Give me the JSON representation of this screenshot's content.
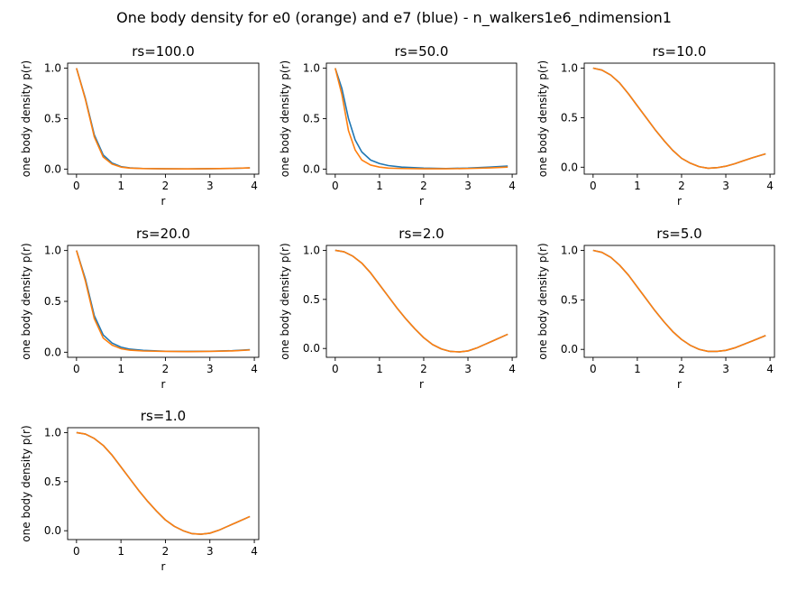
{
  "suptitle": "One body density for e0 (orange) and e7 (blue) - n_walkers1e6_ndimension1",
  "colors": {
    "e7": "#1f77b4",
    "e0": "#ff7f0e"
  },
  "chart_data": [
    {
      "type": "line",
      "title": "rs=100.0",
      "xlabel": "r",
      "ylabel": "one body density p(r)",
      "xlim": [
        -0.2,
        4.1
      ],
      "ylim": [
        -0.05,
        1.05
      ],
      "xticks": [
        0,
        1,
        2,
        3,
        4
      ],
      "yticks": [
        0.0,
        0.5,
        1.0
      ],
      "x": [
        0,
        0.2,
        0.4,
        0.6,
        0.8,
        1.0,
        1.2,
        1.5,
        2.0,
        2.5,
        3.0,
        3.5,
        3.9
      ],
      "series": [
        {
          "key": "e7",
          "values": [
            1.0,
            0.7,
            0.34,
            0.14,
            0.06,
            0.025,
            0.012,
            0.006,
            0.003,
            0.002,
            0.004,
            0.007,
            0.012
          ]
        },
        {
          "key": "e0",
          "values": [
            1.0,
            0.69,
            0.32,
            0.12,
            0.05,
            0.02,
            0.01,
            0.005,
            0.003,
            0.002,
            0.004,
            0.007,
            0.012
          ]
        }
      ]
    },
    {
      "type": "line",
      "title": "rs=50.0",
      "xlabel": "r",
      "ylabel": "one body density p(r)",
      "xlim": [
        -0.2,
        4.1
      ],
      "ylim": [
        -0.05,
        1.05
      ],
      "xticks": [
        0,
        1,
        2,
        3,
        4
      ],
      "yticks": [
        0.0,
        0.5,
        1.0
      ],
      "x": [
        0,
        0.15,
        0.3,
        0.45,
        0.6,
        0.8,
        1.0,
        1.2,
        1.5,
        2.0,
        2.5,
        3.0,
        3.5,
        3.9
      ],
      "series": [
        {
          "key": "e7",
          "values": [
            1.0,
            0.8,
            0.5,
            0.29,
            0.17,
            0.09,
            0.055,
            0.035,
            0.02,
            0.01,
            0.006,
            0.01,
            0.02,
            0.03
          ]
        },
        {
          "key": "e0",
          "values": [
            1.0,
            0.74,
            0.38,
            0.19,
            0.09,
            0.04,
            0.02,
            0.01,
            0.006,
            0.003,
            0.003,
            0.006,
            0.012,
            0.02
          ]
        }
      ]
    },
    {
      "type": "line",
      "title": "rs=10.0",
      "xlabel": "r",
      "ylabel": "one body density p(r)",
      "xlim": [
        -0.2,
        4.1
      ],
      "ylim": [
        -0.07,
        1.05
      ],
      "xticks": [
        0,
        1,
        2,
        3,
        4
      ],
      "yticks": [
        0.0,
        0.5,
        1.0
      ],
      "x": [
        0,
        0.2,
        0.4,
        0.6,
        0.8,
        1.0,
        1.2,
        1.4,
        1.6,
        1.8,
        2.0,
        2.2,
        2.4,
        2.6,
        2.8,
        3.0,
        3.2,
        3.4,
        3.6,
        3.9
      ],
      "series": [
        {
          "key": "e7",
          "values": [
            1.0,
            0.98,
            0.93,
            0.85,
            0.74,
            0.62,
            0.5,
            0.38,
            0.27,
            0.17,
            0.09,
            0.04,
            0.005,
            -0.01,
            -0.005,
            0.01,
            0.035,
            0.065,
            0.095,
            0.135
          ]
        },
        {
          "key": "e0",
          "values": [
            1.0,
            0.98,
            0.93,
            0.85,
            0.74,
            0.62,
            0.5,
            0.38,
            0.27,
            0.17,
            0.09,
            0.04,
            0.005,
            -0.01,
            -0.005,
            0.01,
            0.035,
            0.065,
            0.095,
            0.135
          ]
        }
      ]
    },
    {
      "type": "line",
      "title": "rs=20.0",
      "xlabel": "r",
      "ylabel": "one body density p(r)",
      "xlim": [
        -0.2,
        4.1
      ],
      "ylim": [
        -0.05,
        1.05
      ],
      "xticks": [
        0,
        1,
        2,
        3,
        4
      ],
      "yticks": [
        0.0,
        0.5,
        1.0
      ],
      "x": [
        0,
        0.2,
        0.4,
        0.6,
        0.8,
        1.0,
        1.2,
        1.5,
        2.0,
        2.5,
        3.0,
        3.5,
        3.9
      ],
      "series": [
        {
          "key": "e7",
          "values": [
            1.0,
            0.72,
            0.36,
            0.17,
            0.09,
            0.05,
            0.03,
            0.018,
            0.01,
            0.008,
            0.01,
            0.015,
            0.025
          ]
        },
        {
          "key": "e0",
          "values": [
            1.0,
            0.7,
            0.33,
            0.14,
            0.07,
            0.035,
            0.02,
            0.012,
            0.008,
            0.006,
            0.008,
            0.013,
            0.022
          ]
        }
      ]
    },
    {
      "type": "line",
      "title": "rs=2.0",
      "xlabel": "r",
      "ylabel": "one body density p(r)",
      "xlim": [
        -0.2,
        4.1
      ],
      "ylim": [
        -0.09,
        1.05
      ],
      "xticks": [
        0,
        1,
        2,
        3,
        4
      ],
      "yticks": [
        0.0,
        0.5,
        1.0
      ],
      "x": [
        0,
        0.2,
        0.4,
        0.6,
        0.8,
        1.0,
        1.2,
        1.4,
        1.6,
        1.8,
        2.0,
        2.2,
        2.4,
        2.6,
        2.8,
        3.0,
        3.2,
        3.4,
        3.6,
        3.9
      ],
      "series": [
        {
          "key": "e7",
          "values": [
            1.0,
            0.985,
            0.94,
            0.87,
            0.77,
            0.65,
            0.53,
            0.41,
            0.3,
            0.2,
            0.11,
            0.04,
            -0.005,
            -0.03,
            -0.035,
            -0.025,
            0.005,
            0.045,
            0.085,
            0.145
          ]
        },
        {
          "key": "e0",
          "values": [
            1.0,
            0.985,
            0.94,
            0.87,
            0.77,
            0.65,
            0.53,
            0.41,
            0.3,
            0.2,
            0.11,
            0.04,
            -0.005,
            -0.03,
            -0.035,
            -0.025,
            0.005,
            0.045,
            0.085,
            0.145
          ]
        }
      ]
    },
    {
      "type": "line",
      "title": "rs=5.0",
      "xlabel": "r",
      "ylabel": "one body density p(r)",
      "xlim": [
        -0.2,
        4.1
      ],
      "ylim": [
        -0.08,
        1.05
      ],
      "xticks": [
        0,
        1,
        2,
        3,
        4
      ],
      "yticks": [
        0.0,
        0.5,
        1.0
      ],
      "x": [
        0,
        0.2,
        0.4,
        0.6,
        0.8,
        1.0,
        1.2,
        1.4,
        1.6,
        1.8,
        2.0,
        2.2,
        2.4,
        2.6,
        2.8,
        3.0,
        3.2,
        3.4,
        3.6,
        3.9
      ],
      "series": [
        {
          "key": "e7",
          "values": [
            1.0,
            0.98,
            0.93,
            0.85,
            0.75,
            0.63,
            0.51,
            0.39,
            0.28,
            0.18,
            0.1,
            0.04,
            0.0,
            -0.02,
            -0.02,
            -0.01,
            0.015,
            0.05,
            0.085,
            0.14
          ]
        },
        {
          "key": "e0",
          "values": [
            1.0,
            0.98,
            0.93,
            0.85,
            0.75,
            0.63,
            0.51,
            0.39,
            0.28,
            0.18,
            0.1,
            0.04,
            0.0,
            -0.02,
            -0.02,
            -0.01,
            0.015,
            0.05,
            0.085,
            0.14
          ]
        }
      ]
    },
    {
      "type": "line",
      "title": "rs=1.0",
      "xlabel": "r",
      "ylabel": "one body density p(r)",
      "xlim": [
        -0.2,
        4.1
      ],
      "ylim": [
        -0.09,
        1.05
      ],
      "xticks": [
        0,
        1,
        2,
        3,
        4
      ],
      "yticks": [
        0.0,
        0.5,
        1.0
      ],
      "x": [
        0,
        0.2,
        0.4,
        0.6,
        0.8,
        1.0,
        1.2,
        1.4,
        1.6,
        1.8,
        2.0,
        2.2,
        2.4,
        2.6,
        2.8,
        3.0,
        3.2,
        3.4,
        3.6,
        3.9
      ],
      "series": [
        {
          "key": "e7",
          "values": [
            1.0,
            0.985,
            0.94,
            0.87,
            0.77,
            0.65,
            0.53,
            0.41,
            0.3,
            0.2,
            0.11,
            0.045,
            0.0,
            -0.03,
            -0.035,
            -0.025,
            0.005,
            0.045,
            0.085,
            0.145
          ]
        },
        {
          "key": "e0",
          "values": [
            1.0,
            0.985,
            0.94,
            0.87,
            0.77,
            0.65,
            0.53,
            0.41,
            0.3,
            0.2,
            0.11,
            0.045,
            0.0,
            -0.03,
            -0.035,
            -0.025,
            0.005,
            0.045,
            0.085,
            0.145
          ]
        }
      ]
    }
  ]
}
